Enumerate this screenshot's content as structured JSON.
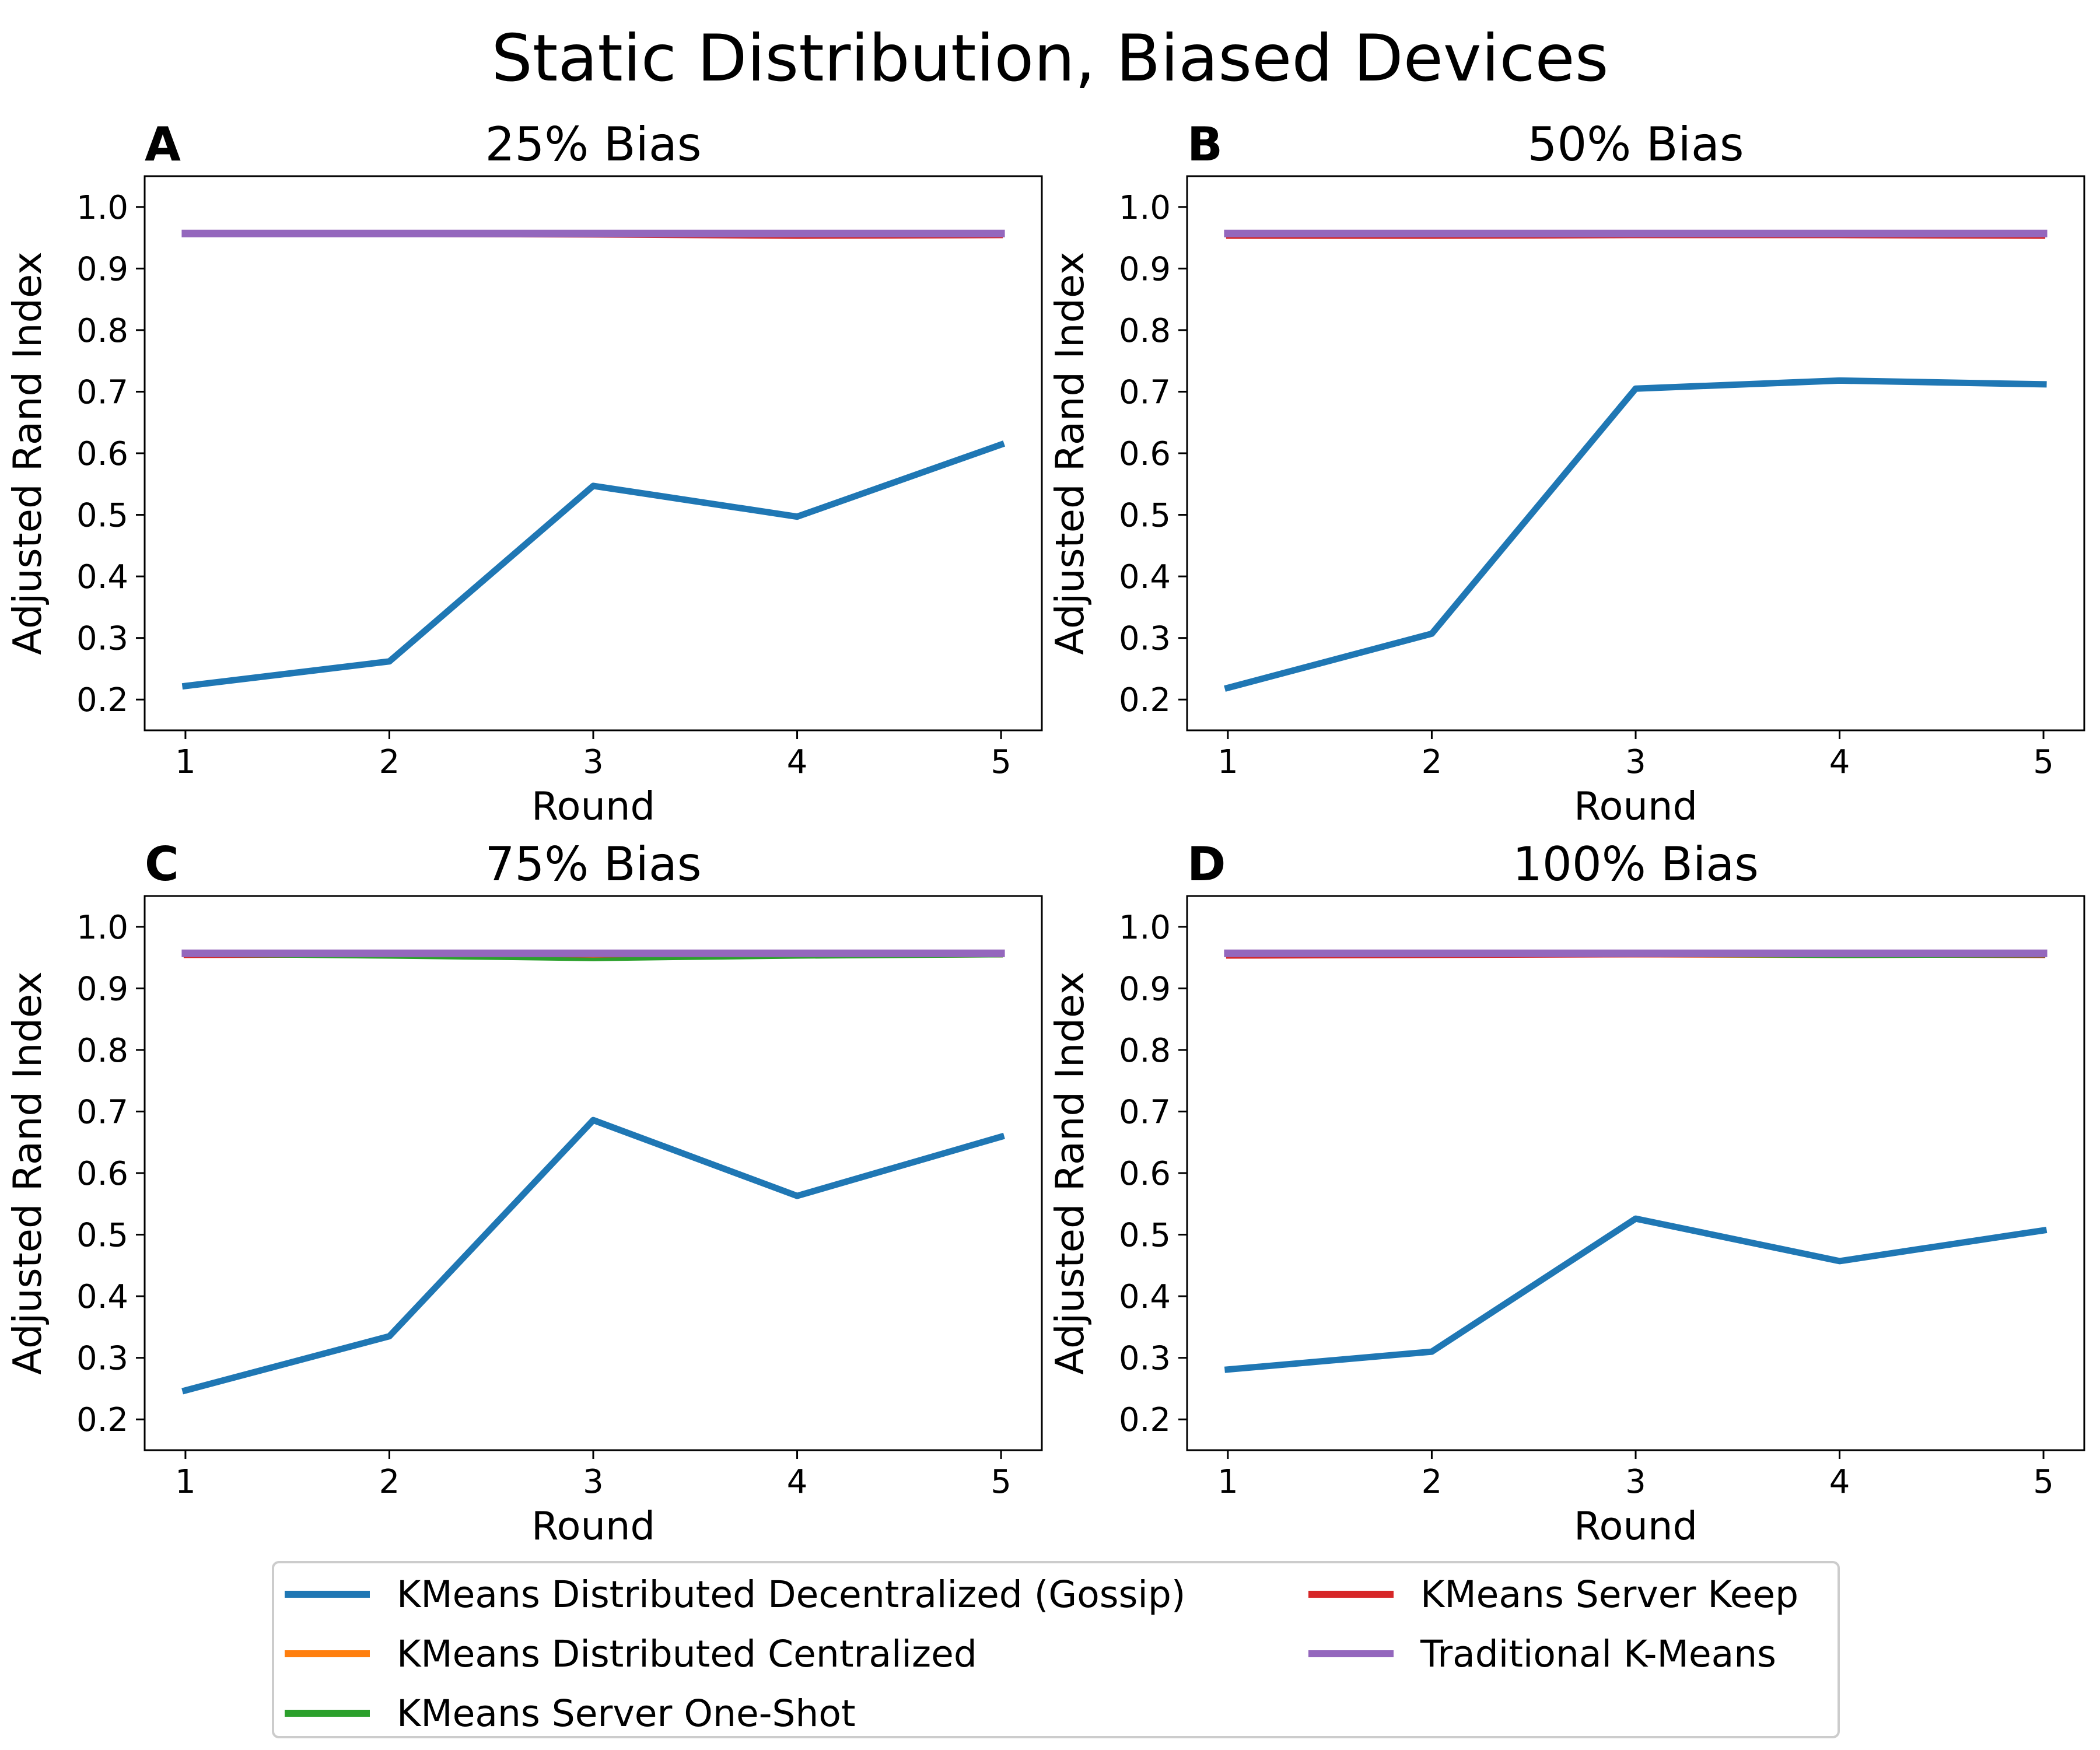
{
  "figure": {
    "title": "Static Distribution, Biased Devices"
  },
  "series_styles": [
    {
      "name": "KMeans Distributed Decentralized (Gossip)",
      "color": "#1f77b4"
    },
    {
      "name": "KMeans Distributed Centralized",
      "color": "#ff7f0e"
    },
    {
      "name": "KMeans Server One-Shot",
      "color": "#2ca02c"
    },
    {
      "name": "KMeans Server Keep",
      "color": "#d62728"
    },
    {
      "name": "Traditional K-Means",
      "color": "#9467bd"
    }
  ],
  "chart_data": [
    {
      "type": "line",
      "panel_label": "A",
      "title": "25% Bias",
      "xlabel": "Round",
      "ylabel": "Adjusted Rand Index",
      "x": [
        1,
        2,
        3,
        4,
        5
      ],
      "xlim": [
        0.8,
        5.2
      ],
      "ylim": [
        0.15,
        1.05
      ],
      "xticks": [
        1,
        2,
        3,
        4,
        5
      ],
      "yticks": [
        "0.2",
        "0.3",
        "0.4",
        "0.5",
        "0.6",
        "0.7",
        "0.8",
        "0.9",
        "1.0"
      ],
      "grid": false,
      "series": [
        {
          "name": "KMeans Distributed Decentralized (Gossip)",
          "values": [
            0.222,
            0.262,
            0.547,
            0.497,
            0.614
          ]
        },
        {
          "name": "KMeans Distributed Centralized",
          "values": [
            0.955,
            0.954,
            0.954,
            0.952,
            0.953
          ]
        },
        {
          "name": "KMeans Server One-Shot",
          "values": [
            0.956,
            0.955,
            0.955,
            0.954,
            0.955
          ]
        },
        {
          "name": "KMeans Server Keep",
          "values": [
            0.954,
            0.954,
            0.953,
            0.951,
            0.952
          ]
        },
        {
          "name": "Traditional K-Means",
          "values": [
            0.957,
            0.957,
            0.957,
            0.957,
            0.957
          ]
        }
      ]
    },
    {
      "type": "line",
      "panel_label": "B",
      "title": "50% Bias",
      "xlabel": "Round",
      "ylabel": "Adjusted Rand Index",
      "x": [
        1,
        2,
        3,
        4,
        5
      ],
      "xlim": [
        0.8,
        5.2
      ],
      "ylim": [
        0.15,
        1.05
      ],
      "xticks": [
        1,
        2,
        3,
        4,
        5
      ],
      "yticks": [
        "0.2",
        "0.3",
        "0.4",
        "0.5",
        "0.6",
        "0.7",
        "0.8",
        "0.9",
        "1.0"
      ],
      "grid": false,
      "series": [
        {
          "name": "KMeans Distributed Decentralized (Gossip)",
          "values": [
            0.219,
            0.307,
            0.705,
            0.718,
            0.712
          ]
        },
        {
          "name": "KMeans Distributed Centralized",
          "values": [
            0.953,
            0.953,
            0.954,
            0.953,
            0.953
          ]
        },
        {
          "name": "KMeans Server One-Shot",
          "values": [
            0.955,
            0.955,
            0.955,
            0.955,
            0.955
          ]
        },
        {
          "name": "KMeans Server Keep",
          "values": [
            0.951,
            0.951,
            0.952,
            0.952,
            0.951
          ]
        },
        {
          "name": "Traditional K-Means",
          "values": [
            0.957,
            0.957,
            0.957,
            0.957,
            0.957
          ]
        }
      ]
    },
    {
      "type": "line",
      "panel_label": "C",
      "title": "75% Bias",
      "xlabel": "Round",
      "ylabel": "Adjusted Rand Index",
      "x": [
        1,
        2,
        3,
        4,
        5
      ],
      "xlim": [
        0.8,
        5.2
      ],
      "ylim": [
        0.15,
        1.05
      ],
      "xticks": [
        1,
        2,
        3,
        4,
        5
      ],
      "yticks": [
        "0.2",
        "0.3",
        "0.4",
        "0.5",
        "0.6",
        "0.7",
        "0.8",
        "0.9",
        "1.0"
      ],
      "grid": false,
      "series": [
        {
          "name": "KMeans Distributed Decentralized (Gossip)",
          "values": [
            0.247,
            0.335,
            0.686,
            0.563,
            0.659
          ]
        },
        {
          "name": "KMeans Distributed Centralized",
          "values": [
            0.953,
            0.952,
            0.95,
            0.952,
            0.953
          ]
        },
        {
          "name": "KMeans Server One-Shot",
          "values": [
            0.954,
            0.951,
            0.947,
            0.951,
            0.953
          ]
        },
        {
          "name": "KMeans Server Keep",
          "values": [
            0.952,
            0.953,
            0.953,
            0.953,
            0.953
          ]
        },
        {
          "name": "Traditional K-Means",
          "values": [
            0.957,
            0.957,
            0.957,
            0.957,
            0.957
          ]
        }
      ]
    },
    {
      "type": "line",
      "panel_label": "D",
      "title": "100% Bias",
      "xlabel": "Round",
      "ylabel": "Adjusted Rand Index",
      "x": [
        1,
        2,
        3,
        4,
        5
      ],
      "xlim": [
        0.8,
        5.2
      ],
      "ylim": [
        0.15,
        1.05
      ],
      "xticks": [
        1,
        2,
        3,
        4,
        5
      ],
      "yticks": [
        "0.2",
        "0.3",
        "0.4",
        "0.5",
        "0.6",
        "0.7",
        "0.8",
        "0.9",
        "1.0"
      ],
      "grid": false,
      "series": [
        {
          "name": "KMeans Distributed Decentralized (Gossip)",
          "values": [
            0.281,
            0.31,
            0.526,
            0.457,
            0.507
          ]
        },
        {
          "name": "KMeans Distributed Centralized",
          "values": [
            0.953,
            0.953,
            0.953,
            0.952,
            0.953
          ]
        },
        {
          "name": "KMeans Server One-Shot",
          "values": [
            0.954,
            0.954,
            0.954,
            0.952,
            0.953
          ]
        },
        {
          "name": "KMeans Server Keep",
          "values": [
            0.951,
            0.952,
            0.953,
            0.953,
            0.952
          ]
        },
        {
          "name": "Traditional K-Means",
          "values": [
            0.957,
            0.957,
            0.957,
            0.957,
            0.957
          ]
        }
      ]
    }
  ],
  "legend": {
    "placement": "bottom-center",
    "columns": 2,
    "entries": [
      "KMeans Distributed Decentralized (Gossip)",
      "KMeans Distributed Centralized",
      "KMeans Server One-Shot",
      "KMeans Server Keep",
      "Traditional K-Means"
    ]
  }
}
